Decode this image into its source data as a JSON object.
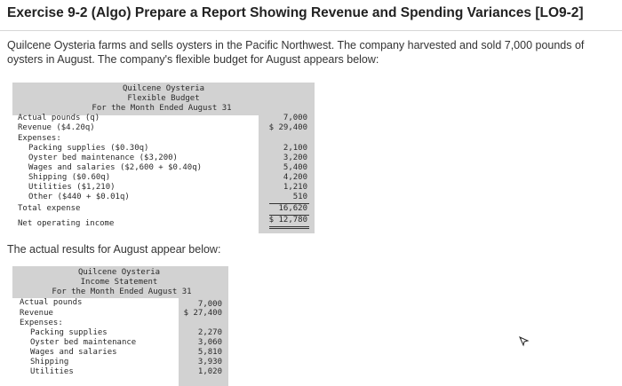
{
  "title": "Exercise 9-2 (Algo) Prepare a Report Showing Revenue and Spending Variances [LO9-2]",
  "intro": "Quilcene Oysteria farms and sells oysters in the Pacific Northwest. The company harvested and sold 7,000 pounds of oysters in August. The company's flexible budget for August appears below:",
  "flexible_budget": {
    "header": [
      "Quilcene Oysteria",
      "Flexible Budget",
      "For the Month Ended August 31"
    ],
    "rows": [
      {
        "label": "Actual pounds (q)",
        "value": "7,000"
      },
      {
        "label": "Revenue ($4.20q)",
        "value": "$ 29,400"
      },
      {
        "label": "Expenses:",
        "value": ""
      },
      {
        "label": "Packing supplies ($0.30q)",
        "value": "2,100"
      },
      {
        "label": "Oyster bed maintenance ($3,200)",
        "value": "3,200"
      },
      {
        "label": "Wages and salaries ($2,600 + $0.40q)",
        "value": "5,400"
      },
      {
        "label": "Shipping ($0.60q)",
        "value": "4,200"
      },
      {
        "label": "Utilities ($1,210)",
        "value": "1,210"
      },
      {
        "label": "Other ($440 + $0.01q)",
        "value": "510"
      },
      {
        "label": "Total expense",
        "value": "16,620"
      },
      {
        "label": "Net operating income",
        "value": "$ 12,780"
      }
    ]
  },
  "middle_text": "The actual results for August appear below:",
  "income_statement": {
    "header": [
      "Quilcene Oysteria",
      "Income Statement",
      "For the Month Ended August 31"
    ],
    "rows": [
      {
        "label": "Actual pounds",
        "value": "7,000"
      },
      {
        "label": "Revenue",
        "value": "$ 27,400"
      },
      {
        "label": "Expenses:",
        "value": ""
      },
      {
        "label": "Packing supplies",
        "value": "2,270"
      },
      {
        "label": "Oyster bed maintenance",
        "value": "3,060"
      },
      {
        "label": "Wages and salaries",
        "value": "5,810"
      },
      {
        "label": "Shipping",
        "value": "3,930"
      },
      {
        "label": "Utilities",
        "value": "1,020"
      }
    ]
  },
  "icons": {
    "cursor": "mouse-pointer-icon"
  }
}
